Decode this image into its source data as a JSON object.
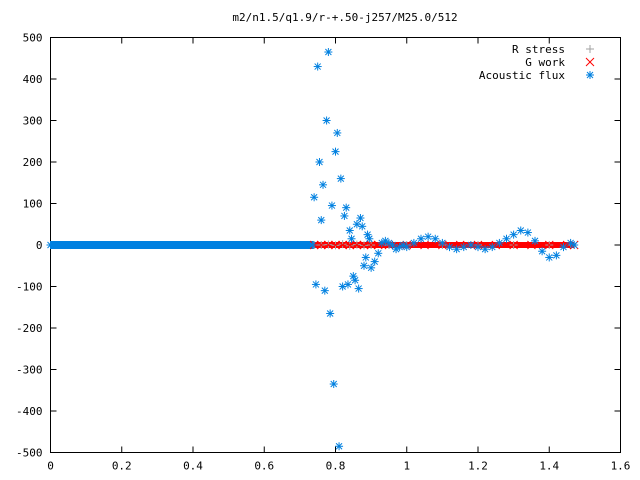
{
  "chart_data": {
    "type": "scatter",
    "title": "m2/n1.5/q1.9/r-+.50-j257/M25.0/512",
    "xlabel": "",
    "ylabel": "",
    "xlim": [
      0,
      1.6
    ],
    "ylim": [
      -500,
      500
    ],
    "xticks": [
      0,
      0.2,
      0.4,
      0.6,
      0.8,
      1,
      1.2,
      1.4,
      1.6
    ],
    "yticks": [
      -500,
      -400,
      -300,
      -200,
      -100,
      0,
      100,
      200,
      300,
      400,
      500
    ],
    "xtick_labels": [
      "0",
      "0.2",
      "0.4",
      "0.6",
      "0.8",
      "1",
      "1.2",
      "1.4",
      "1.6"
    ],
    "ytick_labels": [
      "-500",
      "-400",
      "-300",
      "-200",
      "-100",
      "0",
      "100",
      "200",
      "300",
      "400",
      "500"
    ],
    "grid": false,
    "legend_position": "top-right",
    "series": [
      {
        "name": "R stress",
        "marker": "plus",
        "color": "#a0a0a0",
        "x": [
          0.74,
          0.76,
          0.78,
          0.8,
          0.82,
          0.84,
          0.86,
          0.88,
          0.9,
          0.95,
          1.0,
          1.1,
          1.2,
          1.3,
          1.4,
          1.46
        ],
        "y": [
          0,
          0,
          1,
          -1,
          2,
          -2,
          1,
          -1,
          0,
          0,
          0,
          0,
          0,
          0,
          0,
          0
        ]
      },
      {
        "name": "G work",
        "marker": "cross",
        "color": "#ff0000",
        "x": [
          0.74,
          0.76,
          0.78,
          0.8,
          0.82,
          0.84,
          0.86,
          0.88,
          0.9,
          0.92,
          0.95,
          1.0,
          1.05,
          1.1,
          1.15,
          1.2,
          1.25,
          1.3,
          1.35,
          1.4,
          1.45,
          1.47
        ],
        "y": [
          0,
          0,
          0,
          0,
          0,
          0,
          0,
          0,
          0,
          0,
          0,
          0,
          0,
          0,
          0,
          0,
          0,
          0,
          0,
          0,
          0,
          0
        ]
      },
      {
        "name": "Acoustic flux",
        "marker": "star",
        "color": "#0080e0",
        "x": [
          0,
          0.02,
          0.04,
          0.06,
          0.08,
          0.1,
          0.12,
          0.14,
          0.16,
          0.18,
          0.2,
          0.22,
          0.24,
          0.26,
          0.28,
          0.3,
          0.32,
          0.34,
          0.36,
          0.38,
          0.4,
          0.42,
          0.44,
          0.46,
          0.48,
          0.5,
          0.52,
          0.54,
          0.56,
          0.58,
          0.6,
          0.62,
          0.64,
          0.66,
          0.68,
          0.7,
          0.72,
          0.735,
          0.74,
          0.745,
          0.75,
          0.755,
          0.76,
          0.765,
          0.77,
          0.775,
          0.78,
          0.785,
          0.79,
          0.795,
          0.8,
          0.805,
          0.81,
          0.815,
          0.82,
          0.825,
          0.83,
          0.835,
          0.84,
          0.845,
          0.85,
          0.855,
          0.86,
          0.865,
          0.87,
          0.875,
          0.88,
          0.885,
          0.89,
          0.895,
          0.9,
          0.91,
          0.92,
          0.93,
          0.94,
          0.95,
          0.96,
          0.97,
          0.98,
          0.99,
          1.0,
          1.02,
          1.04,
          1.06,
          1.08,
          1.1,
          1.12,
          1.14,
          1.16,
          1.18,
          1.2,
          1.22,
          1.24,
          1.26,
          1.28,
          1.3,
          1.32,
          1.34,
          1.36,
          1.38,
          1.4,
          1.42,
          1.44,
          1.46,
          1.47
        ],
        "y": [
          0,
          0,
          0,
          0,
          0,
          0,
          0,
          0,
          0,
          0,
          0,
          0,
          0,
          0,
          0,
          0,
          0,
          0,
          0,
          0,
          0,
          0,
          0,
          0,
          0,
          0,
          0,
          0,
          0,
          0,
          0,
          0,
          0,
          0,
          0,
          0,
          0,
          0,
          115,
          -95,
          430,
          200,
          60,
          145,
          -110,
          300,
          465,
          -165,
          95,
          -335,
          225,
          270,
          -485,
          160,
          -100,
          70,
          90,
          -95,
          35,
          15,
          -75,
          -85,
          50,
          -105,
          65,
          45,
          -50,
          -30,
          25,
          15,
          -55,
          -40,
          -20,
          5,
          10,
          5,
          0,
          -10,
          -5,
          0,
          -5,
          5,
          15,
          20,
          15,
          5,
          -5,
          -10,
          -5,
          0,
          -5,
          -10,
          -5,
          5,
          15,
          25,
          35,
          30,
          10,
          -15,
          -30,
          -25,
          -5,
          5,
          0
        ]
      }
    ]
  }
}
